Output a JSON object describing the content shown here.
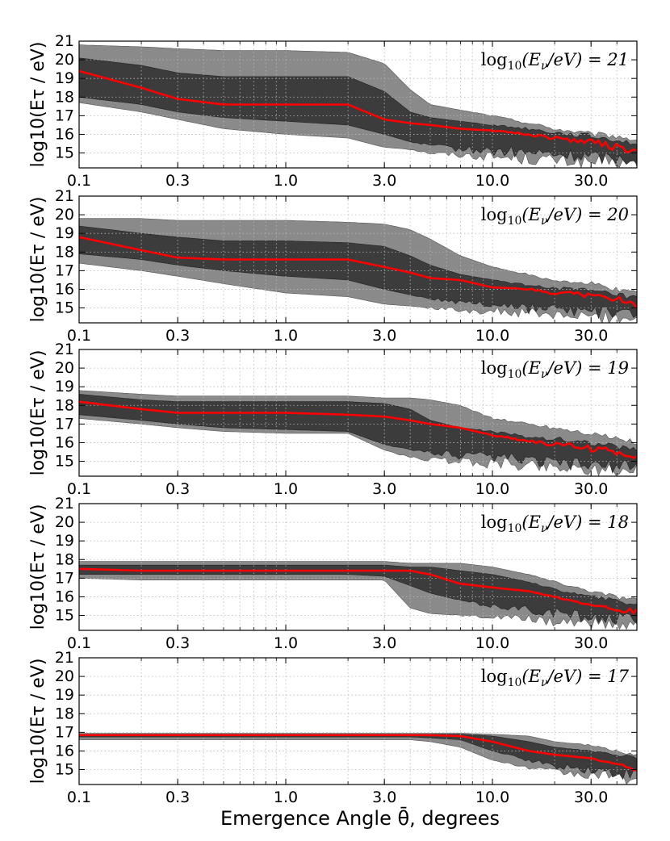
{
  "chart_data": {
    "type": "area",
    "xlabel": "Emergence Angle θ̄, degrees",
    "ylabel": "log10(Eτ / eV)",
    "x_scale": "log",
    "xlim": [
      0.1,
      50
    ],
    "ylim": [
      14.2,
      21
    ],
    "x_ticks": [
      "0.1",
      "0.3",
      "1.0",
      "3.0",
      "10.0",
      "30.0"
    ],
    "x_tick_values": [
      0.1,
      0.3,
      1.0,
      3.0,
      10.0,
      30.0
    ],
    "y_ticks": [
      "15",
      "16",
      "17",
      "18",
      "19",
      "20",
      "21"
    ],
    "y_tick_values": [
      15,
      16,
      17,
      18,
      19,
      20,
      21
    ],
    "grid": true,
    "band_colors": {
      "outer": "#8a8a8a",
      "inner": "#3c3c3c",
      "median": "#ff0000",
      "grid": "#b8b8b8"
    },
    "series_names": [
      "outer band (lower)",
      "outer band (upper)",
      "inner band (lower)",
      "inner band (upper)",
      "median"
    ],
    "angles": [
      0.1,
      0.2,
      0.3,
      0.5,
      1.0,
      2.0,
      3.0,
      4.0,
      5.0,
      7.0,
      10.0,
      15.0,
      20.0,
      30.0,
      40.0,
      50.0
    ],
    "panels": [
      {
        "label_prefix": "log",
        "label_sub": "10",
        "label_mid": "(E",
        "label_sub2": "ν",
        "label_end": "/eV) = 21",
        "neutrino_energy": 21,
        "outer_lo": [
          17.7,
          17.2,
          16.8,
          16.3,
          16.0,
          15.8,
          15.3,
          15.2,
          15.0,
          14.9,
          14.8,
          14.7,
          14.6,
          14.5,
          14.5,
          14.5
        ],
        "outer_hi": [
          20.8,
          20.7,
          20.6,
          20.5,
          20.5,
          20.4,
          19.8,
          18.4,
          17.6,
          17.3,
          17.0,
          16.6,
          16.3,
          16.0,
          15.9,
          15.7
        ],
        "inner_lo": [
          18.0,
          17.6,
          17.2,
          16.9,
          16.7,
          16.5,
          16.0,
          15.6,
          15.4,
          15.2,
          15.1,
          15.0,
          14.9,
          14.8,
          14.7,
          14.7
        ],
        "inner_hi": [
          20.1,
          19.7,
          19.3,
          19.1,
          19.1,
          19.1,
          18.3,
          17.2,
          16.9,
          16.7,
          16.5,
          16.3,
          16.1,
          15.9,
          15.7,
          15.5
        ],
        "median": [
          19.4,
          18.5,
          17.9,
          17.6,
          17.6,
          17.6,
          16.8,
          16.6,
          16.5,
          16.3,
          16.2,
          16.0,
          15.8,
          15.6,
          15.3,
          15.1
        ]
      },
      {
        "label_prefix": "log",
        "label_sub": "10",
        "label_mid": "(E",
        "label_sub2": "ν",
        "label_end": "/eV) = 20",
        "neutrino_energy": 20,
        "outer_lo": [
          17.4,
          17.0,
          16.7,
          16.3,
          15.8,
          15.6,
          15.2,
          15.1,
          15.0,
          14.9,
          14.8,
          14.7,
          14.6,
          14.5,
          14.5,
          14.5
        ],
        "outer_hi": [
          19.8,
          19.8,
          19.7,
          19.7,
          19.7,
          19.6,
          19.5,
          19.2,
          18.7,
          17.8,
          17.2,
          16.8,
          16.5,
          16.3,
          16.0,
          15.8
        ],
        "inner_lo": [
          17.9,
          17.6,
          17.3,
          17.0,
          16.7,
          16.5,
          16.0,
          15.7,
          15.5,
          15.3,
          15.2,
          15.0,
          14.9,
          14.8,
          14.7,
          14.7
        ],
        "inner_hi": [
          19.4,
          19.0,
          18.8,
          18.6,
          18.6,
          18.5,
          18.3,
          17.8,
          17.3,
          16.8,
          16.5,
          16.2,
          16.1,
          15.9,
          15.7,
          15.5
        ],
        "median": [
          18.8,
          18.1,
          17.7,
          17.6,
          17.6,
          17.6,
          17.2,
          16.9,
          16.6,
          16.5,
          16.1,
          16.0,
          15.8,
          15.7,
          15.5,
          15.0
        ]
      },
      {
        "label_prefix": "log",
        "label_sub": "10",
        "label_mid": "(E",
        "label_sub2": "ν",
        "label_end": "/eV) = 19",
        "neutrino_energy": 19,
        "outer_lo": [
          17.3,
          17.0,
          16.8,
          16.6,
          16.5,
          16.5,
          15.6,
          15.2,
          15.1,
          15.0,
          14.9,
          14.8,
          14.7,
          14.6,
          14.5,
          14.5
        ],
        "outer_hi": [
          18.8,
          18.6,
          18.5,
          18.5,
          18.5,
          18.5,
          18.4,
          18.4,
          18.3,
          18.0,
          17.3,
          17.0,
          16.8,
          16.5,
          16.2,
          16.0
        ],
        "inner_lo": [
          17.5,
          17.2,
          17.0,
          16.8,
          16.7,
          16.6,
          15.9,
          15.6,
          15.5,
          15.3,
          15.2,
          15.0,
          14.9,
          14.8,
          14.7,
          14.7
        ],
        "inner_hi": [
          18.6,
          18.3,
          18.2,
          18.2,
          18.2,
          18.2,
          18.1,
          17.8,
          17.2,
          16.8,
          16.6,
          16.3,
          16.2,
          16.0,
          15.8,
          15.6
        ],
        "median": [
          18.2,
          17.8,
          17.6,
          17.6,
          17.6,
          17.5,
          17.4,
          17.2,
          17.0,
          16.8,
          16.4,
          16.1,
          15.9,
          15.7,
          15.5,
          15.3
        ]
      },
      {
        "label_prefix": "log",
        "label_sub": "10",
        "label_mid": "(E",
        "label_sub2": "ν",
        "label_end": "/eV) = 18",
        "neutrino_energy": 18,
        "outer_lo": [
          17.0,
          16.9,
          16.9,
          16.9,
          16.9,
          16.9,
          16.9,
          15.4,
          15.1,
          15.0,
          14.9,
          14.8,
          14.7,
          14.6,
          14.5,
          14.5
        ],
        "outer_hi": [
          17.9,
          17.9,
          17.9,
          17.9,
          17.9,
          17.9,
          17.9,
          17.8,
          17.8,
          17.8,
          17.6,
          17.2,
          16.8,
          16.3,
          16.0,
          15.8
        ],
        "inner_lo": [
          17.2,
          17.2,
          17.2,
          17.2,
          17.2,
          17.2,
          17.1,
          16.6,
          16.2,
          15.8,
          15.5,
          15.3,
          15.1,
          14.9,
          14.8,
          14.8
        ],
        "inner_hi": [
          17.7,
          17.7,
          17.7,
          17.7,
          17.7,
          17.7,
          17.7,
          17.6,
          17.6,
          17.4,
          17.2,
          16.8,
          16.4,
          16.0,
          15.8,
          15.6
        ],
        "median": [
          17.5,
          17.4,
          17.4,
          17.4,
          17.4,
          17.4,
          17.4,
          17.4,
          17.2,
          16.7,
          16.5,
          16.3,
          16.0,
          15.6,
          15.3,
          15.2
        ]
      },
      {
        "label_prefix": "log",
        "label_sub": "10",
        "label_mid": "(E",
        "label_sub2": "ν",
        "label_end": "/eV) = 17",
        "neutrino_energy": 17,
        "outer_lo": [
          16.6,
          16.6,
          16.6,
          16.6,
          16.6,
          16.6,
          16.6,
          16.6,
          16.5,
          16.2,
          15.5,
          15.1,
          14.9,
          14.7,
          14.6,
          14.5
        ],
        "outer_hi": [
          16.95,
          16.95,
          16.95,
          16.95,
          16.95,
          16.95,
          16.95,
          16.95,
          16.95,
          16.95,
          16.9,
          16.8,
          16.5,
          16.3,
          16.0,
          15.8
        ],
        "inner_lo": [
          16.75,
          16.75,
          16.75,
          16.75,
          16.75,
          16.75,
          16.75,
          16.75,
          16.7,
          16.6,
          16.0,
          15.5,
          15.2,
          15.0,
          14.8,
          14.7
        ],
        "inner_hi": [
          16.9,
          16.9,
          16.9,
          16.9,
          16.9,
          16.9,
          16.9,
          16.9,
          16.9,
          16.9,
          16.8,
          16.5,
          16.2,
          16.0,
          15.8,
          15.6
        ],
        "median": [
          16.85,
          16.85,
          16.85,
          16.85,
          16.85,
          16.85,
          16.85,
          16.85,
          16.85,
          16.8,
          16.5,
          16.0,
          15.8,
          15.6,
          15.3,
          15.0
        ]
      }
    ]
  }
}
